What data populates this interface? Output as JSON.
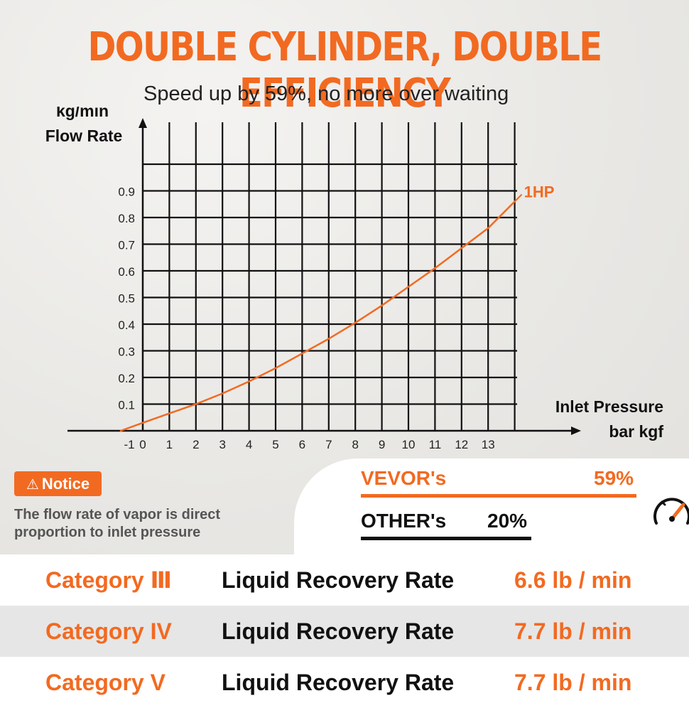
{
  "headline": "DOUBLE CYLINDER, DOUBLE EFFICIENCY",
  "subtitle": "Speed up by 59%, no more over waiting",
  "chart_data": {
    "type": "line",
    "ylabel_line1": "kg/min",
    "ylabel_line2": "Flow Rate",
    "xlabel_line1": "Inlet Pressure",
    "xlabel_line2": "bar kgf",
    "x_ticks": [
      "-1",
      "0",
      "1",
      "2",
      "3",
      "4",
      "5",
      "6",
      "7",
      "8",
      "9",
      "10",
      "11",
      "12",
      "13"
    ],
    "y_ticks": [
      "0.1",
      "0.2",
      "0.3",
      "0.4",
      "0.5",
      "0.6",
      "0.7",
      "0.8",
      "0.9"
    ],
    "xlim": [
      -1,
      14
    ],
    "ylim": [
      0,
      1.0
    ],
    "grid": true,
    "series": [
      {
        "name": "1HP",
        "color": "#f26a21",
        "x": [
          -1,
          0,
          1,
          2,
          3,
          4,
          5,
          6,
          7,
          8,
          9,
          10,
          11,
          12,
          13,
          14
        ],
        "y": [
          0.0,
          0.03,
          0.065,
          0.1,
          0.14,
          0.185,
          0.235,
          0.29,
          0.345,
          0.405,
          0.47,
          0.54,
          0.61,
          0.685,
          0.76,
          0.86
        ]
      }
    ]
  },
  "notice": {
    "badge": "Notice",
    "icon": "warning-triangle-icon",
    "text": "The flow rate of vapor is direct proportion to inlet pressure"
  },
  "comparison": {
    "vevor_label": "VEVOR's",
    "vevor_value": "59%",
    "other_label": "OTHER's",
    "other_value": "20%",
    "icon": "speedometer-icon"
  },
  "rates": [
    {
      "category": "Category Ⅲ",
      "metric": "Liquid Recovery Rate",
      "value": "6.6 lb / min"
    },
    {
      "category": "Category IV",
      "metric": "Liquid Recovery Rate",
      "value": "7.7 lb / min"
    },
    {
      "category": "Category V",
      "metric": "Liquid Recovery Rate",
      "value": "7.7 lb / min"
    }
  ],
  "colors": {
    "accent": "#f26a21",
    "text": "#111111"
  }
}
